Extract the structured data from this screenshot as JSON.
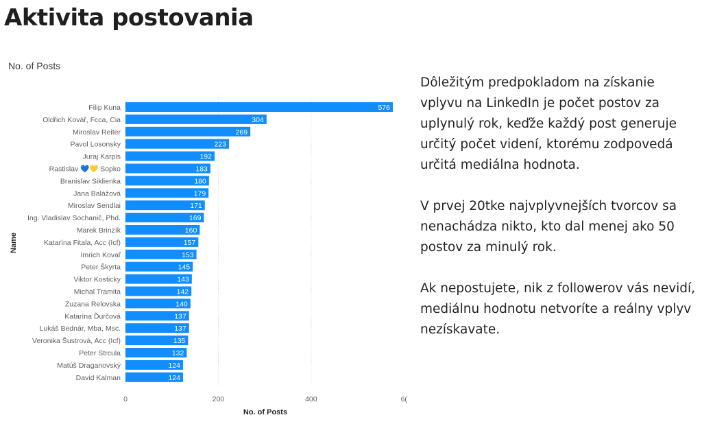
{
  "page": {
    "title": "Aktivita postovania",
    "chart_title": "No. of Posts"
  },
  "chart_data": {
    "type": "bar",
    "orientation": "horizontal",
    "categories": [
      "Filip Kuna",
      "Oldřich Kovář, Fcca, Cia",
      "Miroslav Reiter",
      "Pavol Losonsky",
      "Juraj Karpis",
      "Rastislav 💙💛 Sopko",
      "Branislav Siklienka",
      "Jana Balážová",
      "Miroslav Sendlai",
      "Ing. Vladislav Sochanič, Phd.",
      "Marek Brinzík",
      "Katarína Fitala, Acc (Icf)",
      "Imrich Kovaľ",
      "Peter Škyrta",
      "Viktor Kosticky",
      "Michal Tramita",
      "Zuzana Relovska",
      "Katarína Ďurčová",
      "Lukáš Bednár, Mba, Msc.",
      "Veronika Šustrová, Acc (Icf)",
      "Peter Strcula",
      "Matúš Draganovský",
      "David Kalman"
    ],
    "values": [
      576,
      304,
      269,
      223,
      192,
      183,
      180,
      179,
      171,
      169,
      160,
      157,
      153,
      145,
      143,
      142,
      140,
      137,
      137,
      135,
      132,
      124,
      124
    ],
    "data_labels": true,
    "xlabel": "No. of Posts",
    "ylabel": "Name",
    "xticks": [
      "0",
      "200",
      "400",
      "6("
    ],
    "xlim": [
      0,
      600
    ],
    "grid": "vertical-dotted",
    "bar_color": "#118DFF",
    "label_color": "#ffffff"
  },
  "side_text": {
    "paragraphs": [
      "Dôležitým predpokladom na získanie vplyvu na LinkedIn je počet postov za uplynulý rok, keďže každý post generuje určitý počet videní, ktorému zodpovedá určitá mediálna hodnota.",
      "V prvej 20tke najvplyvnejších tvorcov sa nenachádza nikto, kto dal menej ako 50 postov za minulý rok.",
      "Ak nepostujete, nik z followerov vás nevidí, mediálnu hodnotu netvoríte a reálny vplyv nezískavate."
    ]
  }
}
